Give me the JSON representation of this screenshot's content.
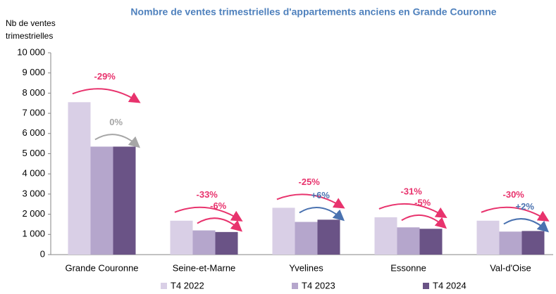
{
  "chart_data": {
    "type": "bar",
    "title": "Nombre de ventes trimestrielles d'appartements anciens en Grande Couronne",
    "ylabel": "Nb de ventes trimestrielles",
    "categories": [
      "Grande Couronne",
      "Seine-et-Marne",
      "Yvelines",
      "Essonne",
      "Val-d'Oise"
    ],
    "series": [
      {
        "name": "T4 2022",
        "color": "#d9cfe6",
        "values": [
          7550,
          1680,
          2320,
          1850,
          1680
        ]
      },
      {
        "name": "T4 2023",
        "color": "#b5a6cc",
        "values": [
          5350,
          1200,
          1620,
          1350,
          1140
        ]
      },
      {
        "name": "T4 2024",
        "color": "#6a5386",
        "values": [
          5350,
          1120,
          1730,
          1280,
          1170
        ]
      }
    ],
    "ylim": [
      0,
      10000
    ],
    "yticks": [
      0,
      {
        "value": 1000,
        "label": "1 000"
      },
      {
        "value": 2000,
        "label": "2 000"
      },
      {
        "value": 3000,
        "label": "3 000"
      },
      {
        "value": 4000,
        "label": "4 000"
      },
      {
        "value": 5000,
        "label": "5 000"
      },
      {
        "value": 6000,
        "label": "6 000"
      },
      {
        "value": 7000,
        "label": "7 000"
      },
      {
        "value": 8000,
        "label": "8 000"
      },
      {
        "value": 9000,
        "label": "9 000"
      },
      {
        "value": 10000,
        "label": "10 000"
      }
    ],
    "change_vs_2022": [
      "-29%",
      "-33%",
      "-25%",
      "-31%",
      "-30%"
    ],
    "change_vs_2022_colors": [
      "#e8336d",
      "#e8336d",
      "#e8336d",
      "#e8336d",
      "#e8336d"
    ],
    "change_vs_2023": [
      "0%",
      "-6%",
      "+6%",
      "-5%",
      "+2%"
    ],
    "change_vs_2023_colors": [
      "#a6a6a6",
      "#e8336d",
      "#4a72b0",
      "#e8336d",
      "#4a72b0"
    ],
    "grid": false
  }
}
